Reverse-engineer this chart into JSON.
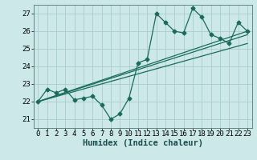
{
  "xlabel": "Humidex (Indice chaleur)",
  "xlim": [
    -0.5,
    23.5
  ],
  "ylim": [
    20.5,
    27.5
  ],
  "xticks": [
    0,
    1,
    2,
    3,
    4,
    5,
    6,
    7,
    8,
    9,
    10,
    11,
    12,
    13,
    14,
    15,
    16,
    17,
    18,
    19,
    20,
    21,
    22,
    23
  ],
  "yticks": [
    21,
    22,
    23,
    24,
    25,
    26,
    27
  ],
  "bg_color": "#cce8e8",
  "grid_color": "#aacccc",
  "line_color": "#1a6b5a",
  "series1_x": [
    0,
    1,
    2,
    3,
    4,
    5,
    6,
    7,
    8,
    9,
    10,
    11,
    12,
    13,
    14,
    15,
    16,
    17,
    18,
    19,
    20,
    21,
    22,
    23
  ],
  "series1_y": [
    22.0,
    22.7,
    22.5,
    22.7,
    22.1,
    22.2,
    22.3,
    21.8,
    21.0,
    21.3,
    22.2,
    24.2,
    24.4,
    27.0,
    26.5,
    26.0,
    25.9,
    27.3,
    26.8,
    25.8,
    25.6,
    25.3,
    26.5,
    26.0
  ],
  "series2_x": [
    0,
    23
  ],
  "series2_y": [
    22.0,
    25.8
  ],
  "series3_x": [
    0,
    23
  ],
  "series3_y": [
    22.0,
    26.0
  ],
  "series4_x": [
    0,
    23
  ],
  "series4_y": [
    22.0,
    25.3
  ],
  "tick_fontsize": 6.5,
  "xlabel_fontsize": 7.5,
  "lw": 0.9,
  "ms": 2.5
}
